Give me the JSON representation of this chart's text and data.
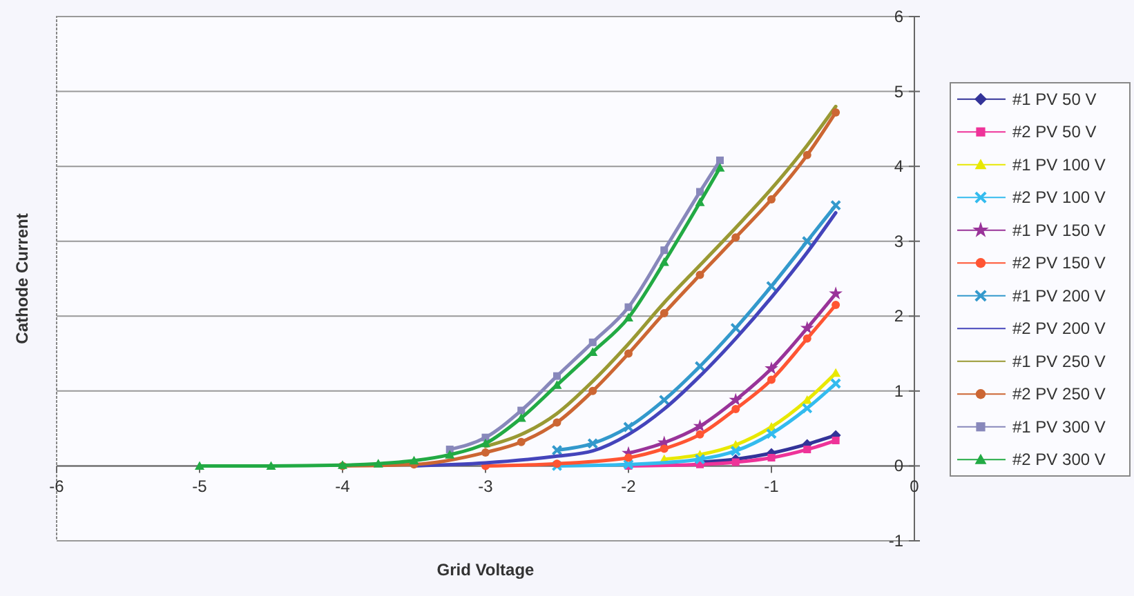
{
  "chart_data": {
    "type": "line",
    "xlabel": "Grid Voltage",
    "ylabel": "Cathode Current",
    "xlim": [
      -6,
      0
    ],
    "xticks": [
      -6,
      -5,
      -4,
      -3,
      -2,
      -1,
      0
    ],
    "ylim": [
      -1,
      6
    ],
    "yticks": [
      -1,
      0,
      1,
      2,
      3,
      4,
      5,
      6
    ],
    "grid": "y",
    "legend": "right",
    "line_style": "solid",
    "series": [
      {
        "name": "#1 PV 50 V",
        "color": "#333399",
        "marker": "diamond",
        "x": [
          -1.5,
          -1.25,
          -1,
          -0.75,
          -0.55
        ],
        "values": [
          0.05,
          0.09,
          0.17,
          0.29,
          0.41
        ]
      },
      {
        "name": "#2 PV 50 V",
        "color": "#ee3399",
        "marker": "square",
        "x": [
          -2,
          -1.5,
          -1.25,
          -1,
          -0.75,
          -0.55
        ],
        "values": [
          0,
          0.02,
          0.05,
          0.11,
          0.22,
          0.34
        ]
      },
      {
        "name": "#1 PV 100 V",
        "color": "#e8e800",
        "marker": "triangle",
        "x": [
          -1.75,
          -1.5,
          -1.25,
          -1,
          -0.75,
          -0.55
        ],
        "values": [
          0.09,
          0.15,
          0.28,
          0.52,
          0.88,
          1.24
        ]
      },
      {
        "name": "#2 PV 100 V",
        "color": "#33bbee",
        "marker": "cross",
        "x": [
          -2.5,
          -2,
          -1.5,
          -1.25,
          -1,
          -0.75,
          -0.55
        ],
        "values": [
          0,
          0.02,
          0.09,
          0.2,
          0.43,
          0.77,
          1.1
        ]
      },
      {
        "name": "#1 PV 150 V",
        "color": "#993399",
        "marker": "star",
        "x": [
          -2,
          -1.75,
          -1.5,
          -1.25,
          -1,
          -0.75,
          -0.55
        ],
        "values": [
          0.17,
          0.31,
          0.53,
          0.88,
          1.3,
          1.84,
          2.3
        ]
      },
      {
        "name": "#2 PV 150 V",
        "color": "#ff5533",
        "marker": "circle",
        "x": [
          -3,
          -2.5,
          -2,
          -1.75,
          -1.5,
          -1.25,
          -1,
          -0.75,
          -0.55
        ],
        "values": [
          0,
          0.03,
          0.11,
          0.23,
          0.42,
          0.76,
          1.15,
          1.7,
          2.15
        ]
      },
      {
        "name": "#1 PV 200 V",
        "color": "#3399cc",
        "marker": "cross",
        "x": [
          -2.5,
          -2.25,
          -2,
          -1.75,
          -1.5,
          -1.25,
          -1,
          -0.75,
          -0.55
        ],
        "values": [
          0.21,
          0.3,
          0.52,
          0.88,
          1.33,
          1.84,
          2.4,
          3.0,
          3.48
        ]
      },
      {
        "name": "#2 PV 200 V",
        "color": "#4444bb",
        "marker": "none",
        "x": [
          -3.5,
          -3,
          -2.5,
          -2.25,
          -2,
          -1.75,
          -1.5,
          -1.25,
          -1,
          -0.75,
          -0.55
        ],
        "values": [
          0,
          0.04,
          0.13,
          0.2,
          0.42,
          0.76,
          1.2,
          1.7,
          2.25,
          2.85,
          3.38
        ]
      },
      {
        "name": "#1 PV 250 V",
        "color": "#999933",
        "marker": "none",
        "x": [
          -3,
          -2.75,
          -2.5,
          -2.25,
          -2,
          -1.75,
          -1.5,
          -1.25,
          -1,
          -0.75,
          -0.55
        ],
        "values": [
          0.26,
          0.42,
          0.7,
          1.13,
          1.63,
          2.18,
          2.68,
          3.18,
          3.7,
          4.28,
          4.8
        ]
      },
      {
        "name": "#2 PV 250 V",
        "color": "#cc6633",
        "marker": "circle",
        "x": [
          -4,
          -3.5,
          -3,
          -2.75,
          -2.5,
          -2.25,
          -2,
          -1.75,
          -1.5,
          -1.25,
          -1,
          -0.75,
          -0.55
        ],
        "values": [
          0,
          0.02,
          0.18,
          0.32,
          0.58,
          1.0,
          1.5,
          2.04,
          2.55,
          3.05,
          3.56,
          4.15,
          4.72
        ]
      },
      {
        "name": "#1 PV 300 V",
        "color": "#8888bb",
        "marker": "square",
        "x": [
          -3.25,
          -3,
          -2.75,
          -2.5,
          -2.25,
          -2,
          -1.75,
          -1.5,
          -1.36
        ],
        "values": [
          0.22,
          0.38,
          0.74,
          1.2,
          1.65,
          2.12,
          2.88,
          3.66,
          4.08
        ]
      },
      {
        "name": "#2 PV 300 V",
        "color": "#22aa44",
        "marker": "triangle",
        "x": [
          -5,
          -4.5,
          -4,
          -3.75,
          -3.5,
          -3.25,
          -3,
          -2.75,
          -2.5,
          -2.25,
          -2,
          -1.75,
          -1.5,
          -1.36
        ],
        "values": [
          0,
          0,
          0.01,
          0.03,
          0.07,
          0.15,
          0.3,
          0.64,
          1.08,
          1.52,
          1.98,
          2.72,
          3.52,
          3.98
        ]
      }
    ]
  }
}
